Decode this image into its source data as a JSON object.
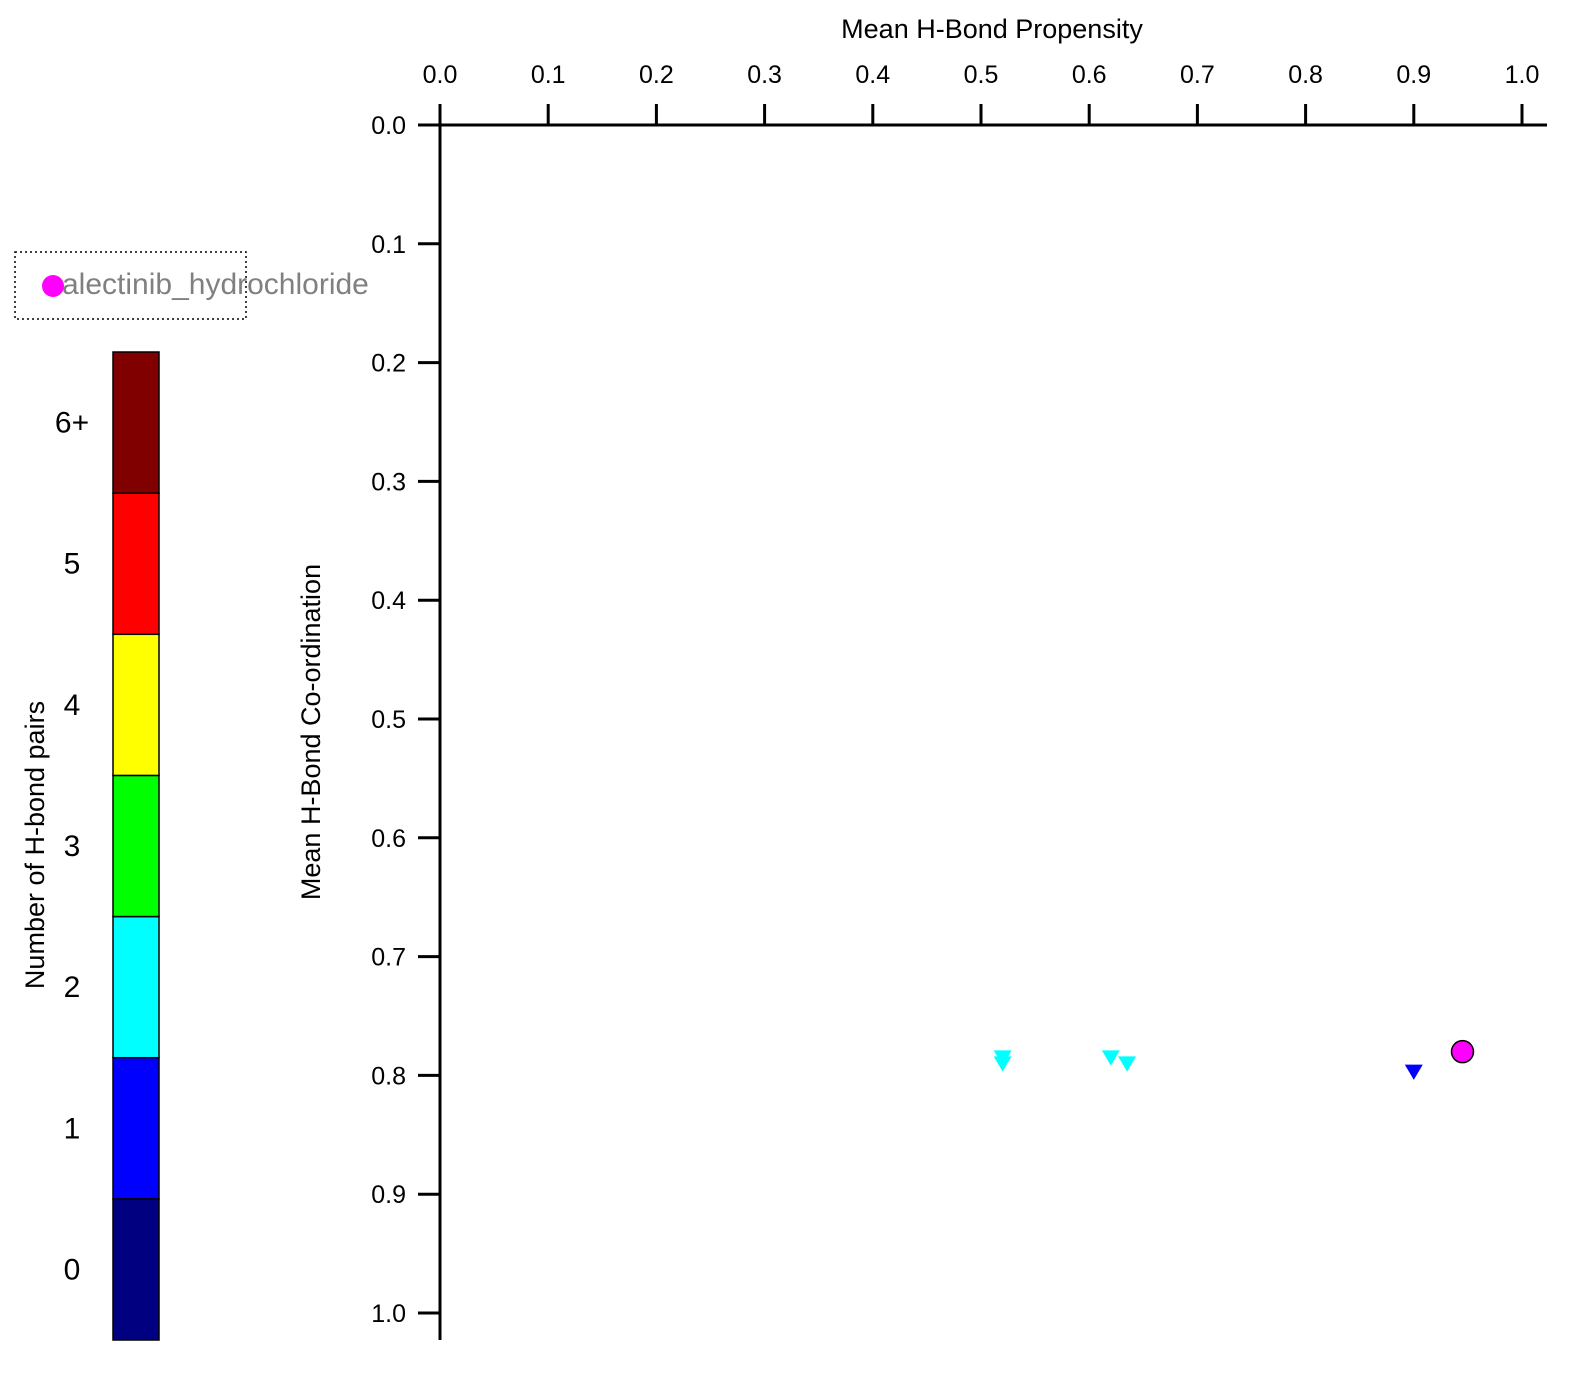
{
  "chart_data": {
    "type": "scatter",
    "xlabel": "Mean H-Bond Propensity",
    "ylabel": "Mean H-Bond Co-ordination",
    "xlim": [
      0.0,
      1.0
    ],
    "ylim": [
      0.0,
      1.0
    ],
    "y_axis_inverted": true,
    "x_axis_position": "top",
    "grid": false,
    "x_ticks": [
      "0.0",
      "0.1",
      "0.2",
      "0.3",
      "0.4",
      "0.5",
      "0.6",
      "0.7",
      "0.8",
      "0.9",
      "1.0"
    ],
    "y_ticks": [
      "0.0",
      "0.1",
      "0.2",
      "0.3",
      "0.4",
      "0.5",
      "0.6",
      "0.7",
      "0.8",
      "0.9",
      "1.0"
    ],
    "legend": {
      "placement": "top-left",
      "entries": [
        {
          "label": "alectinib_hydrochloride",
          "color": "#ff00ff",
          "marker": "circle"
        }
      ]
    },
    "colorbar": {
      "label": "Number of H-bond pairs",
      "levels": [
        {
          "label": "0",
          "color": "#000080"
        },
        {
          "label": "1",
          "color": "#0000ff"
        },
        {
          "label": "2",
          "color": "#00ffff"
        },
        {
          "label": "3",
          "color": "#00ff00"
        },
        {
          "label": "4",
          "color": "#ffff00"
        },
        {
          "label": "5",
          "color": "#ff0000"
        },
        {
          "label": "6+",
          "color": "#800000"
        }
      ]
    },
    "points": [
      {
        "x": 0.52,
        "y": 0.785,
        "hbond_pairs": 2,
        "marker": "triangle-down",
        "color": "#00ffff"
      },
      {
        "x": 0.52,
        "y": 0.79,
        "hbond_pairs": 2,
        "marker": "triangle-down",
        "color": "#00ffff"
      },
      {
        "x": 0.62,
        "y": 0.785,
        "hbond_pairs": 2,
        "marker": "triangle-down",
        "color": "#00ffff"
      },
      {
        "x": 0.635,
        "y": 0.79,
        "hbond_pairs": 2,
        "marker": "triangle-down",
        "color": "#00ffff"
      },
      {
        "x": 0.9,
        "y": 0.797,
        "hbond_pairs": 1,
        "marker": "triangle-down",
        "color": "#0000ff"
      },
      {
        "x": 0.945,
        "y": 0.78,
        "label": "alectinib_hydrochloride",
        "marker": "circle",
        "color": "#ff00ff"
      }
    ]
  }
}
